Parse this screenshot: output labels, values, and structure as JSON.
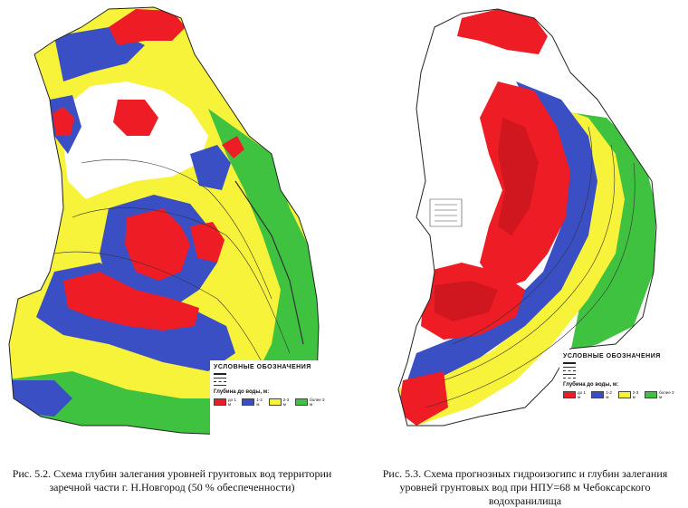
{
  "colors": {
    "red": "#ee1c24",
    "blue": "#3a4fc4",
    "yellow": "#f7f23a",
    "green": "#3fc23f",
    "background": "#ffffff"
  },
  "figures": [
    {
      "caption": "Рис. 5.2. Схема глубин залегания уровней грунтовых вод территории заречной части г. Н.Новгород (50 % обеспеченности)",
      "legend": {
        "title": "УСЛОВНЫЕ ОБОЗНАЧЕНИЯ",
        "depth_title": "Глубина до воды, м:",
        "classes": [
          "до 1 м",
          "1-2 м",
          "2-3 м",
          "более 3 м"
        ]
      }
    },
    {
      "caption": "Рис. 5.3. Схема прогнозных гидроизогипс и глубин залегания уровней грунтовых вод при НПУ=68 м Чебоксарского водохранилища",
      "legend": {
        "title": "УСЛОВНЫЕ ОБОЗНАЧЕНИЯ",
        "depth_title": "Глубина до воды, м:",
        "classes": [
          "до 1 м",
          "1-2 м",
          "2-3 м",
          "более 3 м"
        ]
      }
    }
  ]
}
